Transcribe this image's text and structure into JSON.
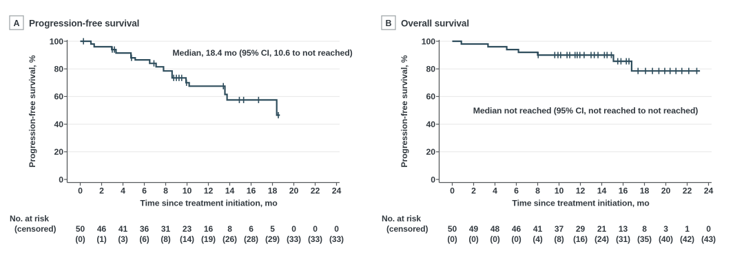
{
  "palette": {
    "curve": "#2e4d5c",
    "axis": "#55595c",
    "grid": "#e7e7e7",
    "text": "#333a40",
    "box_border": "#9aa0a3",
    "background": "#ffffff"
  },
  "figure": {
    "panels": [
      {
        "letter": "A",
        "title": "Progression-free survival"
      },
      {
        "letter": "B",
        "title": "Overall survival"
      }
    ]
  },
  "chart_data": [
    {
      "type": "line",
      "step": true,
      "panel_letter": "A",
      "title": "Progression-free survival",
      "annotation": "Median, 18.4 mo (95% CI, 10.6 to not reached)",
      "xlabel": "Time since treatment initiation, mo",
      "ylabel": "Progression-free survival, %",
      "xlim": [
        0,
        24
      ],
      "ylim": [
        0,
        100
      ],
      "xticks": [
        0,
        2,
        4,
        6,
        8,
        10,
        12,
        14,
        16,
        18,
        20,
        22,
        24
      ],
      "yticks": [
        0,
        20,
        40,
        60,
        80,
        100
      ],
      "grid": true,
      "steps": [
        [
          0,
          100
        ],
        [
          1.0,
          98
        ],
        [
          1.3,
          96
        ],
        [
          2.95,
          94
        ],
        [
          3.35,
          91.5
        ],
        [
          4.75,
          88
        ],
        [
          5.15,
          86.5
        ],
        [
          6.5,
          84
        ],
        [
          7.1,
          81.5
        ],
        [
          7.8,
          78.5
        ],
        [
          8.6,
          73.5
        ],
        [
          9.9,
          70
        ],
        [
          10.2,
          67.5
        ],
        [
          13.55,
          61.5
        ],
        [
          13.75,
          57.5
        ],
        [
          18.4,
          46.5
        ]
      ],
      "end_time": 18.7,
      "censor_times": [
        0.3,
        3.0,
        3.2,
        4.8,
        6.9,
        8.75,
        9.0,
        9.25,
        9.5,
        9.95,
        13.4,
        14.9,
        15.3,
        16.7,
        18.55
      ],
      "risk_table": {
        "row_label_1": "No. at risk",
        "row_label_2": "(censored)",
        "at_risk": [
          50,
          46,
          41,
          36,
          31,
          23,
          16,
          8,
          6,
          5,
          0,
          0,
          0
        ],
        "censored": [
          "(0)",
          "(1)",
          "(3)",
          "(6)",
          "(8)",
          "(14)",
          "(19)",
          "(26)",
          "(28)",
          "(29)",
          "(33)",
          "(33)",
          "(33)"
        ]
      }
    },
    {
      "type": "line",
      "step": true,
      "panel_letter": "B",
      "title": "Overall survival",
      "annotation": "Median not reached (95% CI, not reached to not reached)",
      "xlabel": "Time since treatment initiation, mo",
      "ylabel": "Progression-free survival, %",
      "xlim": [
        0,
        24
      ],
      "ylim": [
        0,
        100
      ],
      "xticks": [
        0,
        2,
        4,
        6,
        8,
        10,
        12,
        14,
        16,
        18,
        20,
        22,
        24
      ],
      "yticks": [
        0,
        20,
        40,
        60,
        80,
        100
      ],
      "grid": true,
      "steps": [
        [
          0,
          100
        ],
        [
          0.85,
          98
        ],
        [
          3.35,
          96
        ],
        [
          5.1,
          94
        ],
        [
          6.2,
          92
        ],
        [
          8.0,
          90
        ],
        [
          15.1,
          85.5
        ],
        [
          16.8,
          78.5
        ]
      ],
      "end_time": 23.2,
      "censor_times": [
        8.05,
        9.6,
        9.9,
        10.15,
        10.75,
        11.0,
        11.5,
        11.7,
        11.95,
        12.35,
        13.0,
        13.3,
        13.65,
        14.25,
        14.5,
        14.9,
        15.5,
        15.8,
        16.3,
        16.55,
        17.4,
        18.1,
        18.75,
        19.35,
        19.9,
        20.4,
        20.95,
        21.5,
        22.15,
        22.9
      ],
      "risk_table": {
        "row_label_1": "No. at risk",
        "row_label_2": "(censored)",
        "at_risk": [
          50,
          49,
          48,
          46,
          41,
          37,
          29,
          21,
          13,
          8,
          3,
          1,
          0
        ],
        "censored": [
          "(0)",
          "(0)",
          "(0)",
          "(0)",
          "(4)",
          "(8)",
          "(16)",
          "(24)",
          "(31)",
          "(35)",
          "(40)",
          "(42)",
          "(43)"
        ]
      }
    }
  ]
}
